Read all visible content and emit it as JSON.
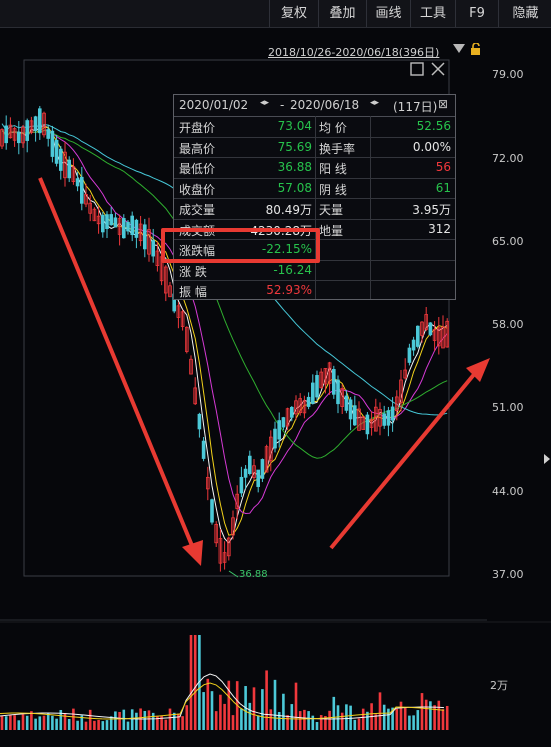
{
  "toolbar": {
    "buttons": [
      "复权",
      "叠加",
      "画线",
      "工具",
      "F9",
      "隐藏"
    ]
  },
  "range": {
    "label": "2018/10/26-2020/06/18(396日)"
  },
  "y_axis": {
    "ticks": [
      "79.00",
      "72.00",
      "65.00",
      "58.00",
      "51.00",
      "44.00",
      "37.00"
    ]
  },
  "volume_axis": {
    "tick": "2万"
  },
  "min_marker": "36.88",
  "panel": {
    "header": {
      "start": "2020/01/02",
      "separator": "-",
      "end": "2020/06/18",
      "days": "(117日)"
    },
    "left_rows": [
      {
        "label": "开盘价",
        "value": "73.04"
      },
      {
        "label": "最高价",
        "value": "75.69"
      },
      {
        "label": "最低价",
        "value": "36.88"
      },
      {
        "label": "收盘价",
        "value": "57.08"
      },
      {
        "label": "成交量",
        "value": "80.49万"
      },
      {
        "label": "成交额",
        "value": "4230.28万"
      },
      {
        "label": "涨跌幅",
        "value": "-22.15%"
      },
      {
        "label": "涨  跌",
        "value": "-16.24"
      },
      {
        "label": "振  幅",
        "value": "52.93%"
      }
    ],
    "right_rows": [
      {
        "label": "均  价",
        "value": "52.56"
      },
      {
        "label": "换手率",
        "value": "0.00%"
      },
      {
        "label": "阳  线",
        "value": "56"
      },
      {
        "label": "阴  线",
        "value": "61"
      },
      {
        "label": "天量",
        "value": "3.95万"
      },
      {
        "label": "地量",
        "value": "312"
      }
    ]
  },
  "colors": {
    "up": "#f0383c",
    "down": "#27c24c",
    "ma5": "#f5f5f5",
    "ma10": "#f2d21b",
    "ma20": "#d63ad6",
    "ma60": "#2fae2f",
    "ma120": "#46c6d6",
    "candle_down": "#4cc9d8",
    "annotation": "#e83a32"
  }
}
